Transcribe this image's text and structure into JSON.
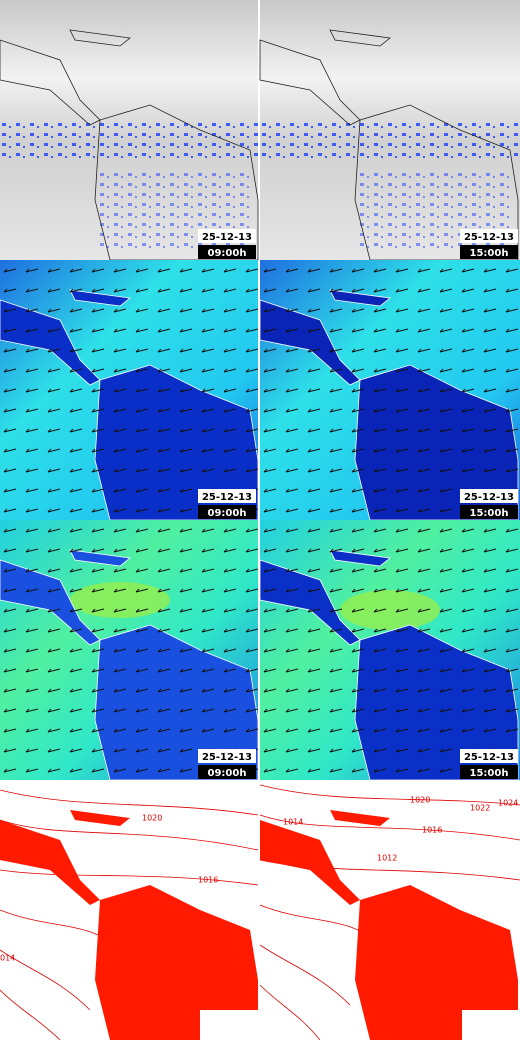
{
  "panels": [
    {
      "date": "25-12-13",
      "time": "09:00h"
    },
    {
      "date": "25-12-13",
      "time": "15:00h"
    },
    {
      "date": "25-12-13",
      "time": "09:00h"
    },
    {
      "date": "25-12-13",
      "time": "15:00h"
    },
    {
      "date": "25-12-13",
      "time": "09:00h"
    },
    {
      "date": "25-12-13",
      "time": "15:00h"
    }
  ],
  "isobar_labels": {
    "left": [
      "1020",
      "1016",
      "014"
    ],
    "right": [
      "1020",
      "1022",
      "1024",
      "1014",
      "1016",
      "1012"
    ]
  }
}
